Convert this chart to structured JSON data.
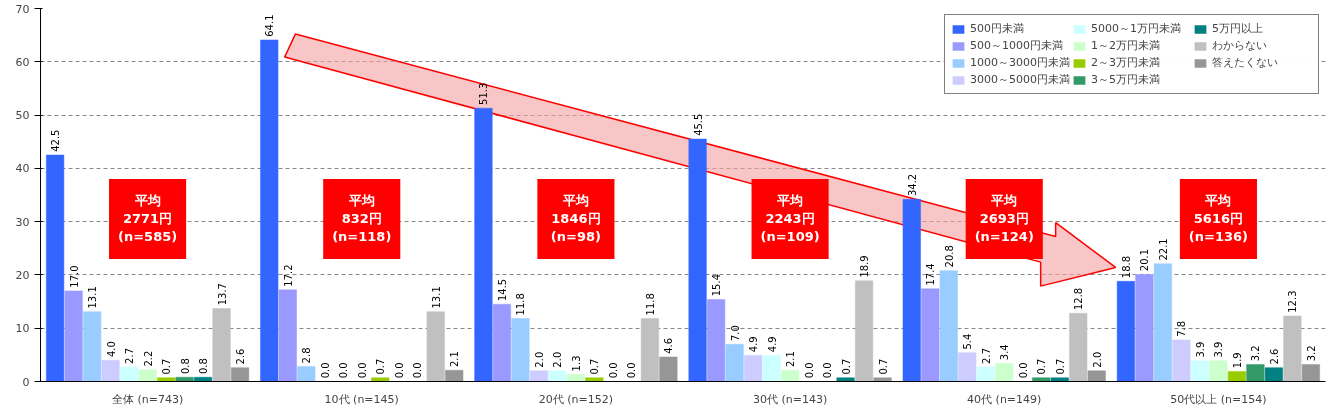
{
  "chart_data": {
    "type": "bar",
    "categories": [
      "全体 (n=743)",
      "10代 (n=145)",
      "20代 (n=152)",
      "30代 (n=143)",
      "40代 (n=149)",
      "50代以上 (n=154)"
    ],
    "series": [
      {
        "name": "500円未満",
        "color": "#3366ff",
        "values": [
          42.5,
          64.1,
          51.3,
          45.5,
          34.2,
          18.8
        ],
        "value_labels": [
          "42.5",
          "64.1",
          "51.3",
          "45.5",
          "34.2",
          "18.8"
        ]
      },
      {
        "name": "500～1000円未満",
        "color": "#9999ff",
        "values": [
          17.0,
          17.2,
          14.5,
          15.4,
          17.4,
          20.1
        ],
        "value_labels": [
          "17.0",
          "17.2",
          "14.5",
          "15.4",
          "17.4",
          "20.1"
        ]
      },
      {
        "name": "1000～3000円未満",
        "color": "#99ccff",
        "values": [
          13.1,
          2.8,
          11.8,
          7.0,
          20.8,
          22.1
        ],
        "value_labels": [
          "13.1",
          "2.8",
          "11.8",
          "7.0",
          "20.8",
          "22.1"
        ]
      },
      {
        "name": "3000～5000円未満",
        "color": "#ccccff",
        "values": [
          4.0,
          0.0,
          2.0,
          4.9,
          5.4,
          7.8
        ],
        "value_labels": [
          "4.0",
          "0.0",
          "2.0",
          "4.9",
          "5.4",
          "7.8"
        ]
      },
      {
        "name": "5000～1万円未満",
        "color": "#ccffff",
        "values": [
          2.7,
          0.0,
          2.0,
          4.9,
          2.7,
          3.9
        ],
        "value_labels": [
          "2.7",
          "0.0",
          "2.0",
          "4.9",
          "2.7",
          "3.9"
        ]
      },
      {
        "name": "1～2万円未満",
        "color": "#ccffcc",
        "values": [
          2.2,
          0.0,
          1.3,
          2.1,
          3.4,
          3.9
        ],
        "value_labels": [
          "2.2",
          "0.0",
          "1.3",
          "2.1",
          "3.4",
          "3.9"
        ]
      },
      {
        "name": "2～3万円未満",
        "color": "#99cc00",
        "values": [
          0.7,
          0.7,
          0.7,
          0.0,
          0.0,
          1.9
        ],
        "value_labels": [
          "0.7",
          "0.7",
          "0.7",
          "0.0",
          "0.0",
          "1.9"
        ]
      },
      {
        "name": "3～5万円未満",
        "color": "#339966",
        "values": [
          0.8,
          0.0,
          0.0,
          0.0,
          0.7,
          3.2
        ],
        "value_labels": [
          "0.8",
          "0.0",
          "0.0",
          "0.0",
          "0.7",
          "3.2"
        ]
      },
      {
        "name": "5万円以上",
        "color": "#008080",
        "values": [
          0.8,
          0.0,
          0.0,
          0.7,
          0.7,
          2.6
        ],
        "value_labels": [
          "0.8",
          "0.0",
          "0.0",
          "0.7",
          "0.7",
          "2.6"
        ]
      },
      {
        "name": "わからない",
        "color": "#c0c0c0",
        "values": [
          13.7,
          13.1,
          11.8,
          18.9,
          12.8,
          12.3
        ],
        "value_labels": [
          "13.7",
          "13.1",
          "11.8",
          "18.9",
          "12.8",
          "12.3"
        ]
      },
      {
        "name": "答えたくない",
        "color": "#969696",
        "values": [
          2.6,
          2.1,
          4.6,
          0.7,
          2.0,
          3.2
        ],
        "value_labels": [
          "2.6",
          "2.1",
          "4.6",
          "0.7",
          "2.0",
          "3.2"
        ]
      }
    ],
    "annotations": [
      "平均\n2771円\n(n=585)",
      "平均\n832円\n(n=118)",
      "平均\n1846円\n(n=98)",
      "平均\n2243円\n(n=109)",
      "平均\n2693円\n(n=124)",
      "平均\n5616円\n(n=136)"
    ],
    "ylim": [
      0,
      70
    ],
    "yticks": [
      0,
      10,
      20,
      30,
      40,
      50,
      60,
      70
    ],
    "grid": "y",
    "legend": "top right"
  }
}
